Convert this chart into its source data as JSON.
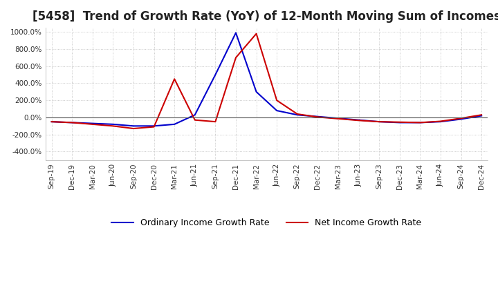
{
  "title": "[5458]  Trend of Growth Rate (YoY) of 12-Month Moving Sum of Incomes",
  "title_fontsize": 12,
  "ylim": [
    -500,
    1050
  ],
  "yticks": [
    -400,
    -200,
    0,
    200,
    400,
    600,
    800,
    1000
  ],
  "background_color": "#ffffff",
  "grid_color": "#bbbbbb",
  "legend_labels": [
    "Ordinary Income Growth Rate",
    "Net Income Growth Rate"
  ],
  "line_colors": [
    "#0000cc",
    "#cc0000"
  ],
  "dates": [
    "Sep-19",
    "Dec-19",
    "Mar-20",
    "Jun-20",
    "Sep-20",
    "Dec-20",
    "Mar-21",
    "Jun-21",
    "Sep-21",
    "Dec-21",
    "Mar-22",
    "Jun-22",
    "Sep-22",
    "Dec-22",
    "Mar-23",
    "Jun-23",
    "Sep-23",
    "Dec-23",
    "Mar-24",
    "Jun-24",
    "Sep-24",
    "Dec-24"
  ],
  "ordinary_income_growth": [
    -50,
    -60,
    -70,
    -80,
    -100,
    -100,
    -80,
    30,
    500,
    990,
    300,
    80,
    30,
    10,
    -10,
    -30,
    -50,
    -60,
    -60,
    -50,
    -20,
    20
  ],
  "net_income_growth": [
    -50,
    -60,
    -80,
    -100,
    -130,
    -110,
    450,
    -30,
    -50,
    700,
    980,
    200,
    40,
    5,
    -15,
    -35,
    -50,
    -55,
    -60,
    -45,
    -10,
    30
  ]
}
